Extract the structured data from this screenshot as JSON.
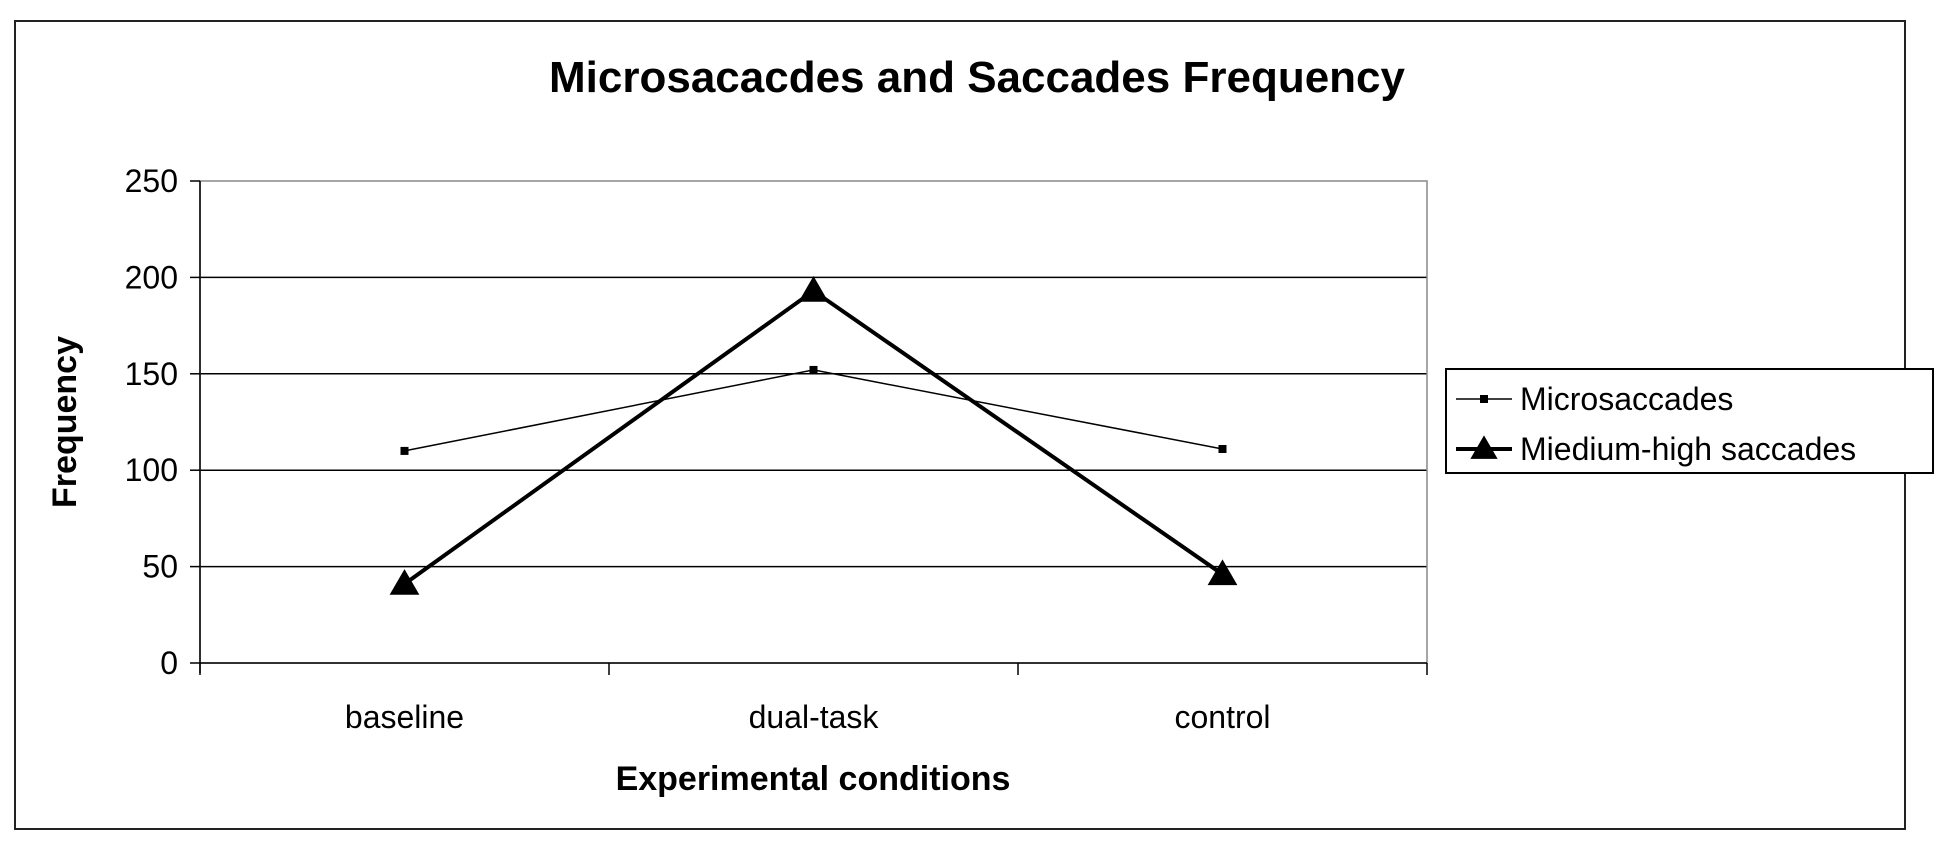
{
  "chart_data": {
    "type": "line",
    "title": "Microsacacdes and Saccades Frequency",
    "xlabel": "Experimental conditions",
    "ylabel": "Frequency",
    "categories": [
      "baseline",
      "dual-task",
      "control"
    ],
    "ylim": [
      0,
      250
    ],
    "yticks": [
      0,
      50,
      100,
      150,
      200,
      250
    ],
    "grid": true,
    "legend_position": "right",
    "series": [
      {
        "name": "Microsaccades",
        "values": [
          110,
          152,
          111
        ],
        "color": "#000000",
        "marker": "square",
        "line_style": "thin"
      },
      {
        "name": "Miedium-high saccades",
        "values": [
          41,
          193,
          46
        ],
        "color": "#000000",
        "marker": "triangle",
        "line_style": "thick"
      }
    ]
  }
}
